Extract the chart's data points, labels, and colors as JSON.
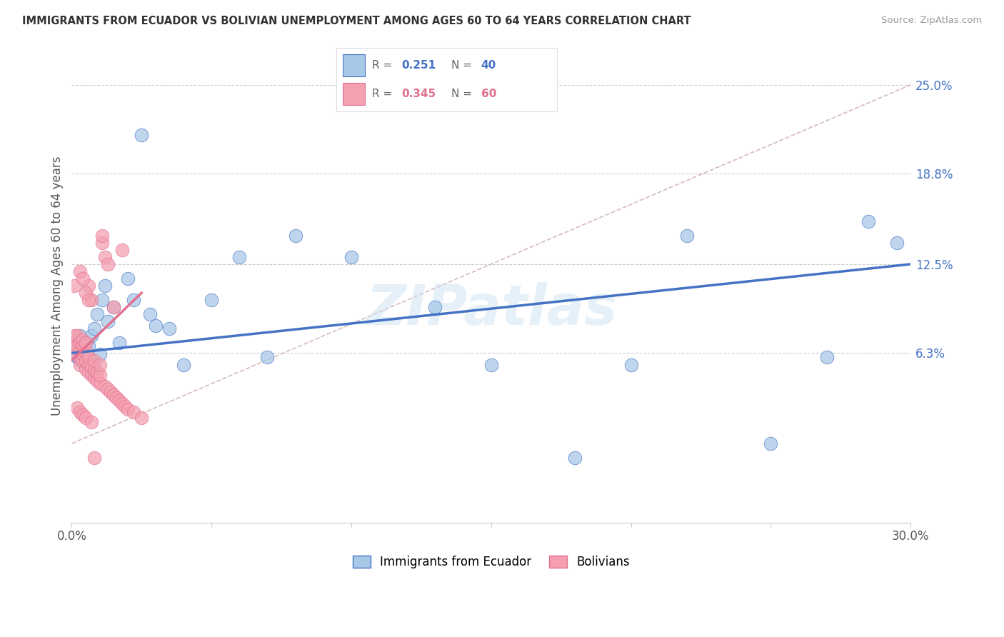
{
  "title": "IMMIGRANTS FROM ECUADOR VS BOLIVIAN UNEMPLOYMENT AMONG AGES 60 TO 64 YEARS CORRELATION CHART",
  "source": "Source: ZipAtlas.com",
  "ylabel": "Unemployment Among Ages 60 to 64 years",
  "ytick_labels": [
    "6.3%",
    "12.5%",
    "18.8%",
    "25.0%"
  ],
  "ytick_values": [
    0.063,
    0.125,
    0.188,
    0.25
  ],
  "xlim": [
    0.0,
    0.3
  ],
  "ylim": [
    -0.055,
    0.275
  ],
  "legend_label1": "Immigrants from Ecuador",
  "legend_label2": "Bolivians",
  "R1": "0.251",
  "N1": "40",
  "R2": "0.345",
  "N2": "60",
  "color_blue": "#a8c8e8",
  "color_pink": "#f4a0b0",
  "line_color_blue": "#4472c4",
  "line_color_pink": "#e07090",
  "diag_color": "#ccaaaa",
  "background_color": "#ffffff",
  "grid_color": "#cccccc",
  "ecuador_x": [
    0.001,
    0.002,
    0.002,
    0.003,
    0.003,
    0.004,
    0.005,
    0.005,
    0.006,
    0.007,
    0.007,
    0.008,
    0.009,
    0.01,
    0.011,
    0.012,
    0.013,
    0.015,
    0.017,
    0.02,
    0.022,
    0.025,
    0.028,
    0.03,
    0.035,
    0.04,
    0.05,
    0.06,
    0.07,
    0.08,
    0.1,
    0.13,
    0.15,
    0.18,
    0.2,
    0.22,
    0.25,
    0.27,
    0.285,
    0.295
  ],
  "ecuador_y": [
    0.068,
    0.072,
    0.06,
    0.058,
    0.075,
    0.065,
    0.062,
    0.07,
    0.068,
    0.055,
    0.075,
    0.08,
    0.09,
    0.062,
    0.1,
    0.11,
    0.085,
    0.095,
    0.07,
    0.115,
    0.1,
    0.215,
    0.09,
    0.082,
    0.08,
    0.055,
    0.1,
    0.13,
    0.06,
    0.145,
    0.13,
    0.095,
    0.055,
    -0.01,
    0.055,
    0.145,
    0.0,
    0.06,
    0.155,
    0.14
  ],
  "bolivia_x": [
    0.001,
    0.001,
    0.001,
    0.002,
    0.002,
    0.002,
    0.003,
    0.003,
    0.003,
    0.003,
    0.004,
    0.004,
    0.004,
    0.004,
    0.005,
    0.005,
    0.005,
    0.005,
    0.006,
    0.006,
    0.006,
    0.006,
    0.007,
    0.007,
    0.007,
    0.008,
    0.008,
    0.008,
    0.009,
    0.009,
    0.01,
    0.01,
    0.01,
    0.011,
    0.011,
    0.012,
    0.012,
    0.013,
    0.013,
    0.014,
    0.015,
    0.015,
    0.016,
    0.017,
    0.018,
    0.018,
    0.019,
    0.02,
    0.022,
    0.025,
    0.003,
    0.004,
    0.005,
    0.006,
    0.002,
    0.003,
    0.004,
    0.005,
    0.007,
    0.008
  ],
  "bolivia_y": [
    0.068,
    0.075,
    0.11,
    0.062,
    0.068,
    0.075,
    0.055,
    0.06,
    0.065,
    0.07,
    0.058,
    0.062,
    0.068,
    0.072,
    0.052,
    0.058,
    0.064,
    0.07,
    0.05,
    0.055,
    0.06,
    0.11,
    0.048,
    0.054,
    0.1,
    0.046,
    0.052,
    0.058,
    0.044,
    0.05,
    0.042,
    0.048,
    0.055,
    0.14,
    0.145,
    0.04,
    0.13,
    0.038,
    0.125,
    0.036,
    0.034,
    0.095,
    0.032,
    0.03,
    0.028,
    0.135,
    0.026,
    0.024,
    0.022,
    0.018,
    0.12,
    0.115,
    0.105,
    0.1,
    0.025,
    0.022,
    0.02,
    0.018,
    0.015,
    -0.01
  ],
  "blue_line_x": [
    0.0,
    0.3
  ],
  "blue_line_y": [
    0.063,
    0.125
  ],
  "pink_line_x": [
    0.0,
    0.025
  ],
  "pink_line_y": [
    0.058,
    0.105
  ],
  "diag_line_x": [
    0.0,
    0.3
  ],
  "diag_line_y": [
    0.0,
    0.25
  ]
}
